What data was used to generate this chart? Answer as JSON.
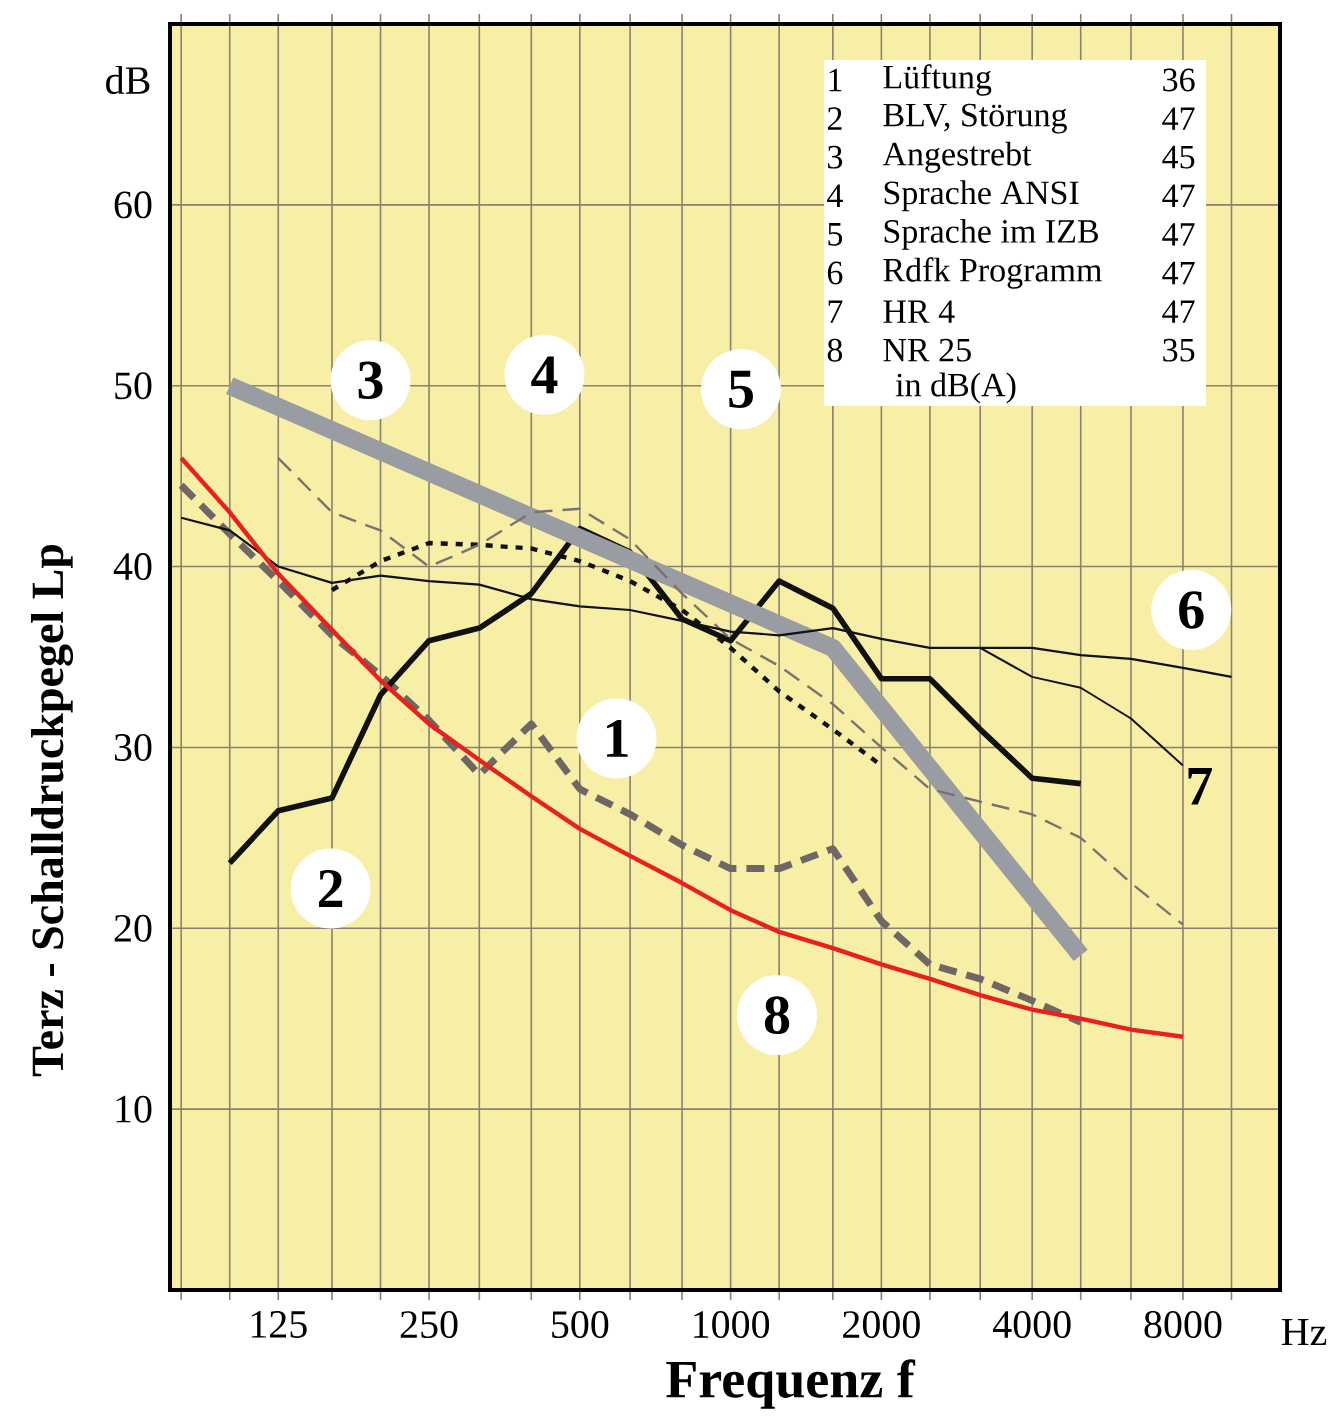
{
  "chart_data": {
    "type": "line",
    "xlabel": "Frequenz  f",
    "ylabel": "Terz - Schalldruckpegel  Lp",
    "log": "x",
    "grid": true,
    "xlim": [
      76,
      12500
    ],
    "ylim": [
      0,
      70
    ],
    "xticks": [
      {
        "value": 80,
        "label": null
      },
      {
        "value": 100,
        "label": null
      },
      125,
      {
        "value": 160,
        "label": null
      },
      {
        "value": 200,
        "label": null
      },
      250,
      {
        "value": 315,
        "label": null
      },
      {
        "value": 400,
        "label": null
      },
      500,
      {
        "value": 630,
        "label": null
      },
      {
        "value": 800,
        "label": null
      },
      1000,
      {
        "value": 1250,
        "label": null
      },
      {
        "value": 1600,
        "label": null
      },
      2000,
      {
        "value": 2500,
        "label": null
      },
      {
        "value": 3150,
        "label": null
      },
      4000,
      {
        "value": 5000,
        "label": null
      },
      {
        "value": 6300,
        "label": null
      },
      8000,
      {
        "value": 10000,
        "label": null
      }
    ],
    "yticks": [
      10,
      20,
      30,
      40,
      50,
      60
    ],
    "series": [
      {
        "color": "#6e6766",
        "line_style": "dashed",
        "x": [
          80,
          100,
          125,
          160,
          200,
          250,
          315,
          400,
          500,
          630,
          800,
          1000,
          1250,
          1600,
          2000,
          2500,
          3150,
          4000,
          5000
        ],
        "values": [
          44.5,
          41.8,
          39.2,
          36.2,
          34,
          31.5,
          28.5,
          31.3,
          27.7,
          26.3,
          24.6,
          23.3,
          23.3,
          24.4,
          20.4,
          18,
          17.2,
          16,
          14.8
        ]
      },
      {
        "color": "#111111",
        "line_style": "solid",
        "x": [
          100,
          125,
          160,
          200,
          250,
          315,
          400,
          500,
          630,
          800,
          1000,
          1250,
          1600,
          2000,
          2500,
          3150,
          4000,
          5000
        ],
        "values": [
          23.6,
          26.5,
          27.2,
          32.9,
          35.9,
          36.6,
          38.5,
          42.1,
          40.8,
          37.1,
          35.9,
          39.2,
          37.7,
          33.8,
          33.8,
          31,
          28.3,
          28
        ]
      },
      {
        "color": "#999ca3",
        "line_style": "solid",
        "x": [
          100,
          1600,
          5000
        ],
        "values": [
          50,
          35.5,
          18.5
        ]
      },
      {
        "color": "#111111",
        "line_style": "dotted",
        "x": [
          160,
          200,
          250,
          315,
          400,
          500,
          630,
          800,
          1000,
          1250,
          1600,
          2000
        ],
        "values": [
          38.7,
          40.3,
          41.3,
          41.2,
          41,
          40.3,
          39.2,
          37.6,
          35.5,
          33.1,
          31,
          29
        ]
      },
      {
        "color": "#7a7270",
        "line_style": "dashed",
        "x": [
          125,
          160,
          200,
          250,
          315,
          400,
          500,
          630,
          800,
          1000,
          1250,
          1600,
          2000,
          2500,
          3150,
          4000,
          5000,
          6300,
          8000
        ],
        "values": [
          46,
          43,
          42,
          40,
          41.2,
          43,
          43.2,
          41.5,
          38.5,
          36,
          34.5,
          32.4,
          30,
          27.7,
          27,
          26.3,
          25,
          22.5,
          20.2
        ]
      },
      {
        "color": "#111111",
        "line_style": "solid",
        "x": [
          80,
          100,
          125,
          160,
          200,
          250,
          315,
          400,
          500,
          630,
          800,
          1000,
          1250,
          1600,
          2000,
          2500,
          3150,
          4000,
          5000,
          6300,
          8000,
          10000
        ],
        "values": [
          42.7,
          42,
          40,
          39.1,
          39.5,
          39.2,
          39,
          38.2,
          37.8,
          37.6,
          37,
          36.4,
          36.2,
          36.6,
          36,
          35.5,
          35.5,
          35.5,
          35.1,
          34.9,
          34.4,
          33.9
        ]
      },
      {
        "color": "#111111",
        "line_style": "solid",
        "x": [
          3150,
          4000,
          5000,
          6300,
          8000
        ],
        "values": [
          35.5,
          33.9,
          33.3,
          31.6,
          29
        ]
      },
      {
        "color": "#e8201f",
        "line_style": "solid",
        "x": [
          80,
          100,
          125,
          160,
          200,
          250,
          315,
          400,
          500,
          630,
          800,
          1000,
          1250,
          1600,
          2000,
          2500,
          3150,
          4000,
          5000,
          6300,
          8000
        ],
        "values": [
          46,
          43,
          39.6,
          36.5,
          33.7,
          31.3,
          29.3,
          27.3,
          25.5,
          24,
          22.5,
          21,
          19.8,
          18.9,
          18,
          17.2,
          16.3,
          15.5,
          15,
          14.4,
          14
        ]
      }
    ],
    "annotations": [
      "1",
      "Lüftung",
      "36",
      "2",
      "BLV, Störung",
      "47",
      "3",
      "Angestrebt",
      "45",
      "4",
      "Sprache ANSI",
      "47",
      "5",
      "Sprache im IZB",
      "47",
      "6",
      "Rdfk Programm",
      "47",
      "7",
      "HR 4",
      "47",
      "8",
      "NR 25",
      "35",
      "in dB(A)",
      "dB",
      "Hz",
      {
        "text": "1",
        "x": 592,
        "y": 30.5
      },
      {
        "text": "2",
        "x": 159,
        "y": 22.2
      },
      {
        "text": "3",
        "x": 191,
        "y": 50.3
      },
      {
        "text": "4",
        "x": 425,
        "y": 50.6
      },
      {
        "text": "5",
        "x": 1049,
        "y": 49.8
      },
      {
        "text": "6",
        "x": 8310,
        "y": 37.6
      },
      {
        "text": "7",
        "x": 8000,
        "y": 29
      },
      {
        "text": "8",
        "x": 1238,
        "y": 15.2
      }
    ]
  }
}
